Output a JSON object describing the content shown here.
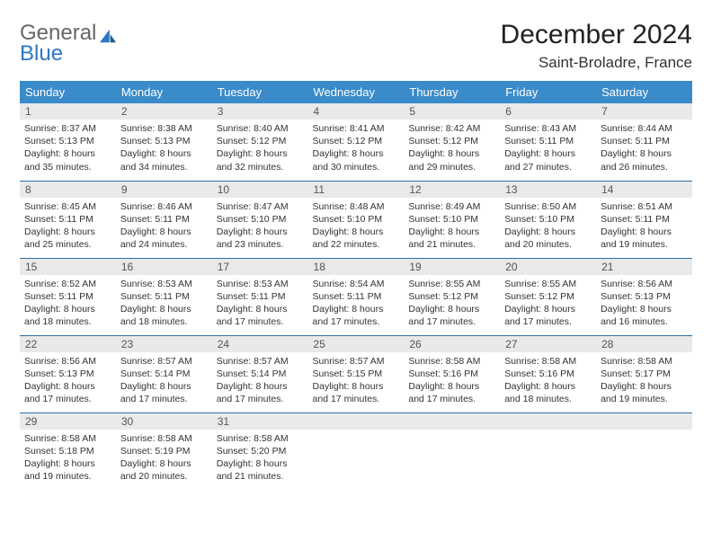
{
  "brand": {
    "word1": "General",
    "word2": "Blue"
  },
  "title": "December 2024",
  "location": "Saint-Broladre, France",
  "colors": {
    "header_bg": "#3a8bc9",
    "header_text": "#ffffff",
    "daynum_bg": "#e9e9e9",
    "row_divider": "#2f6fa3",
    "brand_accent": "#2b78c4",
    "text": "#333333"
  },
  "weekdays": [
    "Sunday",
    "Monday",
    "Tuesday",
    "Wednesday",
    "Thursday",
    "Friday",
    "Saturday"
  ],
  "weeks": [
    [
      {
        "n": "1",
        "sr": "8:37 AM",
        "ss": "5:13 PM",
        "dh": "8",
        "dm": "35"
      },
      {
        "n": "2",
        "sr": "8:38 AM",
        "ss": "5:13 PM",
        "dh": "8",
        "dm": "34"
      },
      {
        "n": "3",
        "sr": "8:40 AM",
        "ss": "5:12 PM",
        "dh": "8",
        "dm": "32"
      },
      {
        "n": "4",
        "sr": "8:41 AM",
        "ss": "5:12 PM",
        "dh": "8",
        "dm": "30"
      },
      {
        "n": "5",
        "sr": "8:42 AM",
        "ss": "5:12 PM",
        "dh": "8",
        "dm": "29"
      },
      {
        "n": "6",
        "sr": "8:43 AM",
        "ss": "5:11 PM",
        "dh": "8",
        "dm": "27"
      },
      {
        "n": "7",
        "sr": "8:44 AM",
        "ss": "5:11 PM",
        "dh": "8",
        "dm": "26"
      }
    ],
    [
      {
        "n": "8",
        "sr": "8:45 AM",
        "ss": "5:11 PM",
        "dh": "8",
        "dm": "25"
      },
      {
        "n": "9",
        "sr": "8:46 AM",
        "ss": "5:11 PM",
        "dh": "8",
        "dm": "24"
      },
      {
        "n": "10",
        "sr": "8:47 AM",
        "ss": "5:10 PM",
        "dh": "8",
        "dm": "23"
      },
      {
        "n": "11",
        "sr": "8:48 AM",
        "ss": "5:10 PM",
        "dh": "8",
        "dm": "22"
      },
      {
        "n": "12",
        "sr": "8:49 AM",
        "ss": "5:10 PM",
        "dh": "8",
        "dm": "21"
      },
      {
        "n": "13",
        "sr": "8:50 AM",
        "ss": "5:10 PM",
        "dh": "8",
        "dm": "20"
      },
      {
        "n": "14",
        "sr": "8:51 AM",
        "ss": "5:11 PM",
        "dh": "8",
        "dm": "19"
      }
    ],
    [
      {
        "n": "15",
        "sr": "8:52 AM",
        "ss": "5:11 PM",
        "dh": "8",
        "dm": "18"
      },
      {
        "n": "16",
        "sr": "8:53 AM",
        "ss": "5:11 PM",
        "dh": "8",
        "dm": "18"
      },
      {
        "n": "17",
        "sr": "8:53 AM",
        "ss": "5:11 PM",
        "dh": "8",
        "dm": "17"
      },
      {
        "n": "18",
        "sr": "8:54 AM",
        "ss": "5:11 PM",
        "dh": "8",
        "dm": "17"
      },
      {
        "n": "19",
        "sr": "8:55 AM",
        "ss": "5:12 PM",
        "dh": "8",
        "dm": "17"
      },
      {
        "n": "20",
        "sr": "8:55 AM",
        "ss": "5:12 PM",
        "dh": "8",
        "dm": "17"
      },
      {
        "n": "21",
        "sr": "8:56 AM",
        "ss": "5:13 PM",
        "dh": "8",
        "dm": "16"
      }
    ],
    [
      {
        "n": "22",
        "sr": "8:56 AM",
        "ss": "5:13 PM",
        "dh": "8",
        "dm": "17"
      },
      {
        "n": "23",
        "sr": "8:57 AM",
        "ss": "5:14 PM",
        "dh": "8",
        "dm": "17"
      },
      {
        "n": "24",
        "sr": "8:57 AM",
        "ss": "5:14 PM",
        "dh": "8",
        "dm": "17"
      },
      {
        "n": "25",
        "sr": "8:57 AM",
        "ss": "5:15 PM",
        "dh": "8",
        "dm": "17"
      },
      {
        "n": "26",
        "sr": "8:58 AM",
        "ss": "5:16 PM",
        "dh": "8",
        "dm": "17"
      },
      {
        "n": "27",
        "sr": "8:58 AM",
        "ss": "5:16 PM",
        "dh": "8",
        "dm": "18"
      },
      {
        "n": "28",
        "sr": "8:58 AM",
        "ss": "5:17 PM",
        "dh": "8",
        "dm": "19"
      }
    ],
    [
      {
        "n": "29",
        "sr": "8:58 AM",
        "ss": "5:18 PM",
        "dh": "8",
        "dm": "19"
      },
      {
        "n": "30",
        "sr": "8:58 AM",
        "ss": "5:19 PM",
        "dh": "8",
        "dm": "20"
      },
      {
        "n": "31",
        "sr": "8:58 AM",
        "ss": "5:20 PM",
        "dh": "8",
        "dm": "21"
      },
      null,
      null,
      null,
      null
    ]
  ],
  "labels": {
    "sunrise": "Sunrise:",
    "sunset": "Sunset:",
    "daylight_prefix": "Daylight:",
    "hours_word": "hours",
    "and_word": "and",
    "minutes_word": "minutes."
  }
}
